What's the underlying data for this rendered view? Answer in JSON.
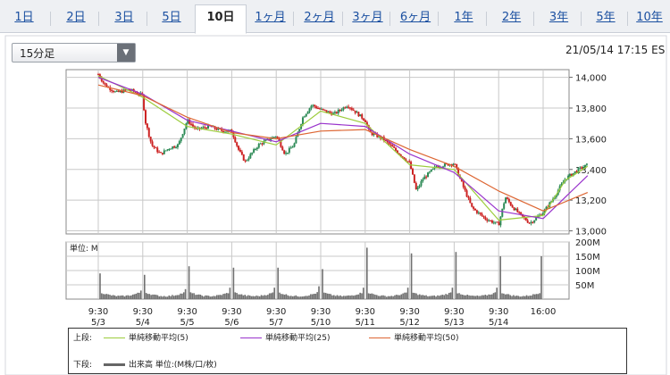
{
  "tabs": [
    "1日",
    "2日",
    "3日",
    "5日",
    "10日",
    "1ヶ月",
    "2ヶ月",
    "3ヶ月",
    "6ヶ月",
    "1年",
    "2年",
    "3年",
    "5年",
    "10年"
  ],
  "active_tab": "10日",
  "interval_select": {
    "value": "15分足"
  },
  "timestamp": "21/05/14 17:15 ES",
  "legend": {
    "upper_label": "上段:",
    "upper_items": [
      {
        "label": "単純移動平均(5)",
        "color": "#9ccc3c"
      },
      {
        "label": "単純移動平均(25)",
        "color": "#9933cc"
      },
      {
        "label": "単純移動平均(50)",
        "color": "#dd6633"
      }
    ],
    "lower_label": "下段:",
    "lower_item": {
      "label": "出来高 単位:(M株/口/枚)",
      "color": "#666666"
    }
  },
  "colors": {
    "up": "#2e8b57",
    "down": "#cc2222",
    "volume": "#707070",
    "grid": "#c8c8c8"
  },
  "chart_data": [
    {
      "type": "candlestick",
      "x_tick_labels": [
        [
          "9:30",
          "5/3"
        ],
        [
          "9:30",
          "5/4"
        ],
        [
          "9:30",
          "5/5"
        ],
        [
          "9:30",
          "5/6"
        ],
        [
          "9:30",
          "5/7"
        ],
        [
          "9:30",
          "5/10"
        ],
        [
          "9:30",
          "5/11"
        ],
        [
          "9:30",
          "5/12"
        ],
        [
          "9:30",
          "5/13"
        ],
        [
          "9:30",
          "5/14"
        ],
        [
          "16:00",
          ""
        ]
      ],
      "y_ticks": [
        "14,000",
        "13,800",
        "13,600",
        "13,400",
        "13,200",
        "13,000"
      ],
      "ylim": [
        12980,
        14050
      ],
      "close_path": [
        [
          0,
          14020
        ],
        [
          0.15,
          13950
        ],
        [
          0.4,
          13900
        ],
        [
          0.7,
          13920
        ],
        [
          1,
          13880
        ],
        [
          1.05,
          13720
        ],
        [
          1.2,
          13560
        ],
        [
          1.4,
          13500
        ],
        [
          1.6,
          13540
        ],
        [
          1.8,
          13560
        ],
        [
          2,
          13720
        ],
        [
          2.2,
          13660
        ],
        [
          2.5,
          13680
        ],
        [
          2.8,
          13650
        ],
        [
          3,
          13650
        ],
        [
          3.15,
          13530
        ],
        [
          3.3,
          13450
        ],
        [
          3.6,
          13560
        ],
        [
          4,
          13620
        ],
        [
          4.2,
          13500
        ],
        [
          4.4,
          13560
        ],
        [
          4.6,
          13740
        ],
        [
          4.8,
          13820
        ],
        [
          5,
          13790
        ],
        [
          5.3,
          13760
        ],
        [
          5.6,
          13820
        ],
        [
          6,
          13720
        ],
        [
          6.1,
          13640
        ],
        [
          6.4,
          13600
        ],
        [
          6.7,
          13520
        ],
        [
          7,
          13440
        ],
        [
          7.15,
          13260
        ],
        [
          7.3,
          13340
        ],
        [
          7.6,
          13420
        ],
        [
          8,
          13440
        ],
        [
          8.2,
          13290
        ],
        [
          8.4,
          13150
        ],
        [
          8.7,
          13080
        ],
        [
          9,
          13040
        ],
        [
          9.15,
          13220
        ],
        [
          9.3,
          13160
        ],
        [
          9.5,
          13100
        ],
        [
          9.7,
          13050
        ],
        [
          10,
          13120
        ],
        [
          10.2,
          13200
        ],
        [
          10.5,
          13340
        ],
        [
          10.8,
          13400
        ],
        [
          11,
          13430
        ]
      ],
      "ma_paths": [
        [
          [
            0,
            14010
          ],
          [
            1,
            13870
          ],
          [
            2,
            13680
          ],
          [
            3,
            13630
          ],
          [
            4,
            13560
          ],
          [
            5,
            13780
          ],
          [
            6,
            13700
          ],
          [
            7,
            13430
          ],
          [
            8,
            13400
          ],
          [
            9,
            13070
          ],
          [
            10,
            13100
          ],
          [
            10.5,
            13330
          ],
          [
            11,
            13420
          ]
        ],
        [
          [
            0,
            14000
          ],
          [
            1,
            13890
          ],
          [
            2,
            13720
          ],
          [
            3,
            13650
          ],
          [
            4,
            13580
          ],
          [
            5,
            13700
          ],
          [
            6,
            13680
          ],
          [
            7,
            13500
          ],
          [
            8,
            13380
          ],
          [
            9,
            13130
          ],
          [
            10,
            13080
          ],
          [
            11,
            13360
          ]
        ],
        [
          [
            0,
            13950
          ],
          [
            1,
            13880
          ],
          [
            2,
            13740
          ],
          [
            3,
            13640
          ],
          [
            4,
            13600
          ],
          [
            5,
            13650
          ],
          [
            6,
            13660
          ],
          [
            7,
            13530
          ],
          [
            8,
            13420
          ],
          [
            9,
            13260
          ],
          [
            10,
            13130
          ],
          [
            11,
            13250
          ]
        ]
      ],
      "volume": {
        "y_ticks": [
          "200M",
          "150M",
          "100M",
          "50M"
        ],
        "ylim": [
          0,
          200
        ],
        "session_open": [
          90,
          85,
          115,
          110,
          110,
          105,
          180,
          160,
          165,
          150
        ],
        "session_close": [
          30,
          35,
          40,
          40,
          45,
          40,
          40,
          40,
          40,
          150
        ],
        "unit_label": "単位: M"
      }
    }
  ]
}
